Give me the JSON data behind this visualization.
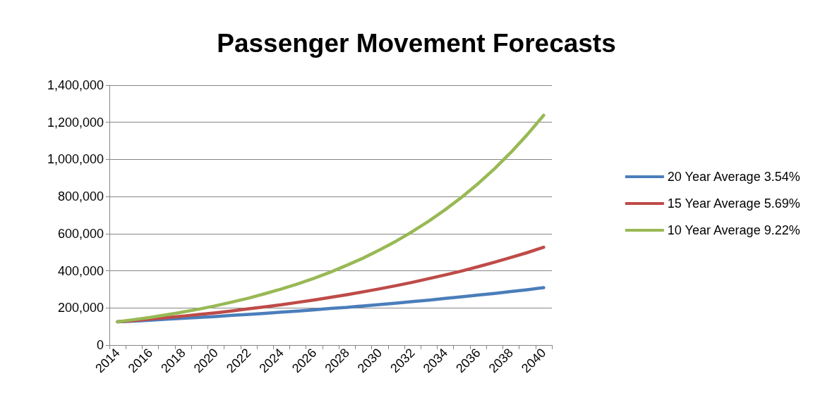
{
  "chart_data": {
    "type": "line",
    "title": "Passenger Movement Forecasts",
    "categories": [
      "2014",
      null,
      "2016",
      null,
      "2018",
      null,
      "2020",
      null,
      "2022",
      null,
      "2024",
      null,
      "2026",
      null,
      "2028",
      null,
      "2030",
      null,
      "2032",
      null,
      "2034",
      null,
      "2036",
      null,
      "2038",
      null,
      "2040"
    ],
    "series": [
      {
        "name": "20 Year Average 3.54%",
        "color": "#4a7ebb",
        "values": [
          125000,
          129000,
          134000,
          139000,
          144000,
          149000,
          154000,
          160000,
          165000,
          171000,
          177000,
          183000,
          190000,
          197000,
          203000,
          211000,
          218000,
          226000,
          234000,
          242000,
          251000,
          260000,
          269000,
          278000,
          288000,
          298000,
          309000
        ]
      },
      {
        "name": "15 Year Average 5.69%",
        "color": "#be4b48",
        "values": [
          125000,
          132000,
          140000,
          148000,
          156000,
          165000,
          174000,
          184000,
          195000,
          206000,
          217000,
          230000,
          243000,
          257000,
          271000,
          287000,
          303000,
          320000,
          338000,
          358000,
          378000,
          399000,
          422000,
          446000,
          472000,
          498000,
          527000
        ]
      },
      {
        "name": "10 Year Average 9.22%",
        "color": "#98b954",
        "values": [
          125000,
          137000,
          149000,
          163000,
          178000,
          194000,
          212000,
          232000,
          253000,
          277000,
          302000,
          330000,
          360000,
          393000,
          430000,
          469000,
          513000,
          560000,
          612000,
          668000,
          730000,
          797000,
          870000,
          950000,
          1038000,
          1134000,
          1238000
        ]
      }
    ],
    "ylim": [
      0,
      1400000
    ],
    "yticks": [
      0,
      {
        "value": 200000,
        "label": "200,000"
      },
      {
        "value": 400000,
        "label": "400,000"
      },
      {
        "value": 600000,
        "label": "600,000"
      },
      {
        "value": 800000,
        "label": "800,000"
      },
      {
        "value": 1000000,
        "label": "1,000,000"
      },
      {
        "value": 1200000,
        "label": "1,200,000"
      },
      {
        "value": 1400000,
        "label": "1,400,000"
      }
    ],
    "grid": "y",
    "legend": "right",
    "marker": "none",
    "line_style": "solid"
  }
}
